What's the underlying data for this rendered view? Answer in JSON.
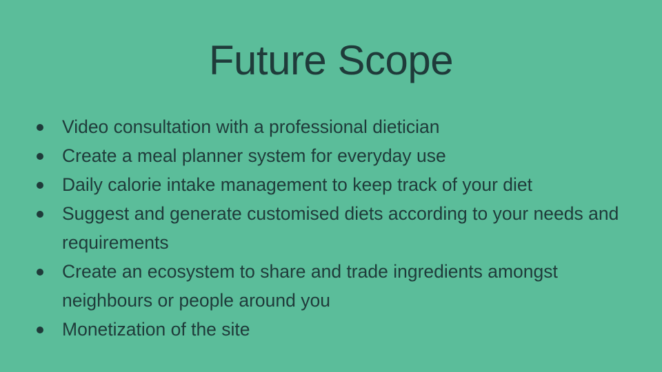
{
  "slide": {
    "title": "Future Scope",
    "bullets": [
      "Video consultation with a professional dietician",
      "Create a meal planner system for everyday use",
      "Daily calorie intake management to keep track of your diet",
      "Suggest and generate customised diets according to your needs and requirements",
      "Create an ecosystem to share and trade ingredients amongst neighbours or people around you",
      "Monetization of the site"
    ],
    "background_color": "#5bbd9a",
    "text_color": "#1f3b3a"
  }
}
